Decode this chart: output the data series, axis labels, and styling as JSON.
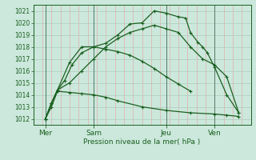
{
  "title": "Pression niveau de la mer( hPa )",
  "bg_color": "#cce8dc",
  "grid_major_color": "#aaccbb",
  "grid_minor_color": "#e8a0a0",
  "line_color": "#1a6020",
  "ylim": [
    1011.5,
    1021.5
  ],
  "yticks": [
    1012,
    1013,
    1014,
    1015,
    1016,
    1017,
    1018,
    1019,
    1020,
    1021
  ],
  "xlim": [
    0,
    9.0
  ],
  "xtick_positions": [
    0.5,
    2.5,
    5.5,
    7.5
  ],
  "xtick_labels": [
    "Mer",
    "Sam",
    "Jeu",
    "Ven"
  ],
  "vline_positions": [
    0.5,
    2.5,
    5.5,
    7.5
  ],
  "num_minor_divisions": 24,
  "series1_x": [
    0.5,
    0.75,
    1.0,
    1.5,
    2.0,
    2.5,
    3.0,
    3.5,
    4.0,
    4.5,
    5.0,
    5.5,
    6.0,
    6.5
  ],
  "series1_y": [
    1012.0,
    1013.3,
    1014.4,
    1016.7,
    1018.0,
    1018.0,
    1017.8,
    1017.6,
    1017.3,
    1016.8,
    1016.2,
    1015.5,
    1014.9,
    1014.3
  ],
  "series2_x": [
    0.5,
    0.75,
    1.0,
    1.3,
    1.6,
    2.0,
    2.5,
    3.0,
    3.5,
    4.0,
    4.5,
    5.0,
    5.5,
    6.0,
    6.3,
    6.5,
    6.8,
    7.0,
    7.2,
    7.5,
    8.0,
    8.5
  ],
  "series2_y": [
    1012.0,
    1013.3,
    1014.4,
    1015.2,
    1016.5,
    1017.5,
    1018.0,
    1018.3,
    1019.0,
    1019.9,
    1020.0,
    1021.0,
    1020.8,
    1020.5,
    1020.4,
    1019.2,
    1018.4,
    1018.0,
    1017.5,
    1016.3,
    1014.0,
    1012.5
  ],
  "series3_x": [
    0.5,
    0.75,
    1.0,
    1.5,
    2.0,
    2.5,
    3.0,
    3.5,
    4.5,
    5.5,
    6.5,
    7.5,
    8.0,
    8.5
  ],
  "series3_y": [
    1012.0,
    1013.0,
    1014.3,
    1014.2,
    1014.1,
    1014.0,
    1013.8,
    1013.5,
    1013.0,
    1012.7,
    1012.5,
    1012.4,
    1012.3,
    1012.2
  ],
  "series4_x": [
    0.5,
    0.75,
    1.0,
    1.5,
    2.0,
    2.5,
    3.0,
    3.5,
    4.0,
    4.5,
    5.0,
    5.5,
    6.0,
    6.5,
    7.0,
    7.5,
    8.0,
    8.5
  ],
  "series4_y": [
    1012.0,
    1013.3,
    1014.4,
    1015.0,
    1016.0,
    1017.0,
    1018.0,
    1018.7,
    1019.2,
    1019.5,
    1019.8,
    1019.5,
    1019.2,
    1018.0,
    1017.0,
    1016.5,
    1015.5,
    1012.5
  ]
}
